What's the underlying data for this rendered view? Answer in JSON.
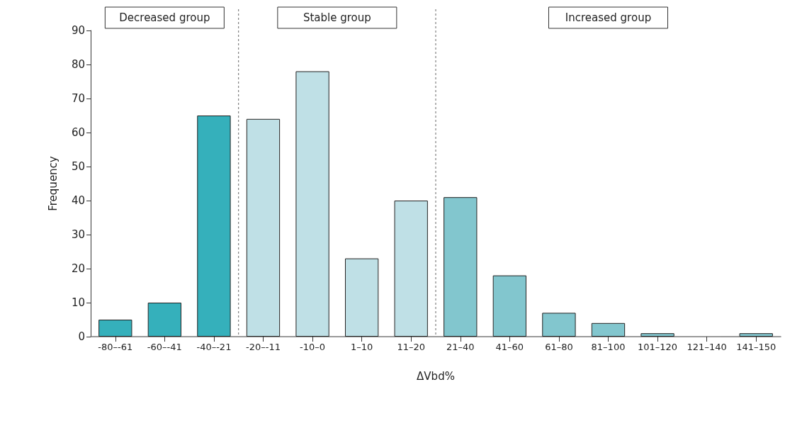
{
  "chart_data": {
    "type": "bar",
    "xlabel": "ΔVbd%",
    "ylabel": "Frequency",
    "categories": [
      "-80–-61",
      "-60–-41",
      "-40–-21",
      "-20–-11",
      "-10–0",
      "1–10",
      "11–20",
      "21–40",
      "41–60",
      "61–80",
      "81–100",
      "101–120",
      "121–140",
      "141–150"
    ],
    "values": [
      5,
      10,
      65,
      64,
      78,
      23,
      40,
      41,
      18,
      7,
      4,
      1,
      0,
      1
    ],
    "colors": [
      "#35b0bb",
      "#35b0bb",
      "#35b0bb",
      "#bfe0e6",
      "#bfe0e6",
      "#bfe0e6",
      "#bfe0e6",
      "#82c6ce",
      "#82c6ce",
      "#82c6ce",
      "#82c6ce",
      "#82c6ce",
      "#82c6ce",
      "#82c6ce"
    ],
    "ylim": [
      0,
      90
    ],
    "yticks": [
      0,
      10,
      20,
      30,
      40,
      50,
      60,
      70,
      80,
      90
    ],
    "grid": false,
    "annotations": [
      "Decreased group",
      "Stable group",
      "Increased group"
    ]
  }
}
